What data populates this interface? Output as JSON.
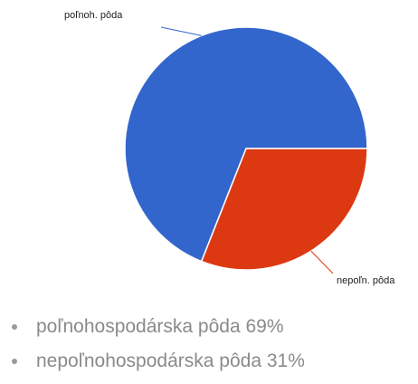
{
  "chart_data": {
    "type": "pie",
    "categories": [
      "poľnoh. pôda",
      "nepoľn. pôda"
    ],
    "values": [
      69,
      31
    ],
    "colors": [
      "#3366cc",
      "#dc3912"
    ],
    "title": "",
    "legend_position": "none"
  },
  "legend": {
    "items": [
      {
        "text": "poľnohospodárska pôda 69%"
      },
      {
        "text": "nepoľnohospodárska pôda 31%"
      }
    ]
  }
}
